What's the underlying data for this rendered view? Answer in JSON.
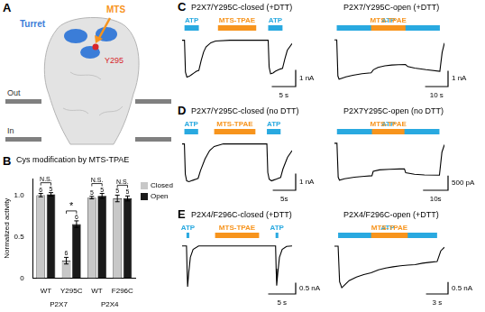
{
  "panel_a": {
    "letter": "A",
    "turret": "Turret",
    "mts": "MTS",
    "residue": "Y295",
    "out": "Out",
    "in": "In"
  },
  "chart_data": [
    {
      "panel": "B",
      "type": "bar",
      "title": "Cys modification by MTS-TPAE",
      "y_label": "Normalized activity",
      "categories": [
        "WT",
        "Y295C",
        "WT",
        "F296C"
      ],
      "groups": [
        {
          "label": "P2X7",
          "size": 2
        },
        {
          "label": "P2X4",
          "size": 2
        }
      ],
      "series": [
        {
          "name": "Closed",
          "color": "#c8c8c8",
          "values": [
            1.0,
            0.21,
            0.97,
            0.96
          ],
          "errors": [
            0.02,
            0.04,
            0.015,
            0.04
          ],
          "n": [
            6,
            6,
            5,
            5
          ]
        },
        {
          "name": "Open",
          "color": "#1a1a1a",
          "values": [
            1.01,
            0.65,
            0.99,
            0.96
          ],
          "errors": [
            0.02,
            0.04,
            0.03,
            0.03
          ],
          "n": [
            5,
            6,
            5,
            5
          ]
        }
      ],
      "significance": [
        "N.S.",
        "*",
        "N.S.",
        "N.S."
      ],
      "ylim": [
        0,
        1.2
      ],
      "yticks": [
        0,
        0.5,
        {
          "value": 1,
          "label": "1.0"
        }
      ],
      "grid": false,
      "legend": "right"
    },
    {
      "panel": "C",
      "type": "line",
      "title": "P2X7/Y295C-closed (+DTT)",
      "color": "#000000",
      "x": [
        0,
        0.5,
        0.7,
        1.0,
        1.5,
        2.0,
        2.5,
        3.0,
        3.5,
        4.0,
        4.5,
        5.0,
        6.0,
        7.0,
        10,
        15,
        18,
        18.2,
        18.5,
        19,
        19.5,
        20,
        20.5,
        21,
        21.5,
        22,
        23
      ],
      "values": [
        0,
        0,
        -1.9,
        -2.2,
        -2.15,
        -2.05,
        -1.95,
        -1.85,
        -1.8,
        -1.2,
        -0.7,
        -0.4,
        -0.15,
        -0.05,
        0,
        0,
        0,
        -1.6,
        -2.0,
        -1.95,
        -1.85,
        -1.78,
        -1.72,
        -1.68,
        -1.1,
        -0.6,
        -0.2
      ],
      "xlim": [
        0,
        23
      ],
      "ylim": [
        -2.6,
        0.3
      ],
      "tick_labels": false,
      "applications": [
        {
          "label": "ATP",
          "start": 0.5,
          "end": 3.5,
          "color": "#29a9e0"
        },
        {
          "label": "MTS-TPAE",
          "start": 7.5,
          "end": 15.5,
          "color": "#f7941d"
        },
        {
          "label": "ATP",
          "start": 18,
          "end": 21,
          "color": "#29a9e0"
        }
      ],
      "scale_bar": {
        "y": 1,
        "y_label": "1 nA",
        "x": 5,
        "x_label": "5 s"
      }
    },
    {
      "type": "line",
      "title": "P2X7/Y295C-open (+DTT)",
      "color": "#000000",
      "x": [
        0,
        1,
        1.5,
        2,
        3,
        5,
        8,
        12,
        16,
        17,
        19,
        22,
        25,
        28,
        31,
        32,
        35,
        40,
        46,
        47,
        48
      ],
      "values": [
        0,
        0,
        -2.3,
        -2.5,
        -2.45,
        -2.35,
        -2.25,
        -2.15,
        -2.1,
        -1.9,
        -1.75,
        -1.65,
        -1.6,
        -1.58,
        -1.57,
        -1.7,
        -1.8,
        -1.9,
        -2.0,
        -0.8,
        -0.2
      ],
      "xlim": [
        0,
        48
      ],
      "ylim": [
        -2.8,
        0.3
      ],
      "tick_labels": false,
      "applications": [
        {
          "label": "ATP",
          "start": 1,
          "end": 46,
          "color": "#29a9e0"
        },
        {
          "label": "MTS-TPAE",
          "start": 16,
          "end": 31,
          "color": "#f7941d"
        }
      ],
      "scale_bar": {
        "y": 1,
        "y_label": "1 nA",
        "x": 10,
        "x_label": "10 s"
      }
    },
    {
      "panel": "D",
      "type": "line",
      "title": "P2X7/Y295C-closed (no DTT)",
      "color": "#000000",
      "x": [
        0,
        0.5,
        0.7,
        1,
        1.5,
        2,
        2.5,
        3,
        3.5,
        4,
        5,
        6,
        7,
        9,
        16,
        18.5,
        18.7,
        19,
        19.5,
        20,
        20.5,
        21,
        21.5,
        22,
        23,
        24
      ],
      "values": [
        0,
        0,
        -1.8,
        -2.2,
        -2.25,
        -2.2,
        -2.15,
        -2.1,
        -2.05,
        -1.6,
        -0.9,
        -0.4,
        -0.15,
        0,
        0,
        0,
        -1.7,
        -2.1,
        -2.2,
        -2.15,
        -2.1,
        -2.05,
        -2.0,
        -1.5,
        -0.8,
        -0.4
      ],
      "xlim": [
        0,
        24
      ],
      "ylim": [
        -2.6,
        0.3
      ],
      "tick_labels": false,
      "applications": [
        {
          "label": "ATP",
          "start": 0.5,
          "end": 3.5,
          "color": "#29a9e0"
        },
        {
          "label": "MTS-TPAE",
          "start": 7,
          "end": 16,
          "color": "#f7941d"
        },
        {
          "label": "ATP",
          "start": 18.5,
          "end": 21.5,
          "color": "#29a9e0"
        }
      ],
      "scale_bar": {
        "y": 1,
        "y_label": "1 nA",
        "x": 5,
        "x_label": "5s"
      }
    },
    {
      "type": "line",
      "title": "P2X7Y295C-open (no DTT)",
      "color": "#000000",
      "x": [
        0,
        1,
        1.5,
        2,
        4,
        8,
        12,
        15,
        15.5,
        18,
        22,
        26,
        28,
        28.5,
        32,
        36,
        42,
        43,
        44
      ],
      "values": [
        0,
        0,
        -1.15,
        -1.25,
        -1.2,
        -1.15,
        -1.12,
        -1.1,
        -0.95,
        -0.9,
        -0.88,
        -0.87,
        -0.87,
        -1.0,
        -1.05,
        -1.07,
        -1.08,
        -0.3,
        -0.05
      ],
      "xlim": [
        0,
        44
      ],
      "ylim": [
        -1.5,
        0.15
      ],
      "tick_labels": false,
      "applications": [
        {
          "label": "ATP",
          "start": 1,
          "end": 42,
          "color": "#29a9e0"
        },
        {
          "label": "MTS-TPAE",
          "start": 15,
          "end": 28,
          "color": "#f7941d"
        }
      ],
      "scale_bar": {
        "y": 0.5,
        "y_label": "500 pA",
        "x": 10,
        "x_label": "10s"
      }
    },
    {
      "panel": "E",
      "type": "line",
      "title": "P2X4/F296C-closed (+DTT)",
      "color": "#000000",
      "x": [
        0,
        0.8,
        0.9,
        1.0,
        1.2,
        1.5,
        2,
        3,
        6,
        17,
        17.1,
        17.2,
        17.4,
        17.7,
        18.2,
        19,
        20
      ],
      "values": [
        0,
        0,
        -1.0,
        -1.8,
        -1.2,
        -0.5,
        -0.15,
        0,
        0,
        0,
        -1.0,
        -1.75,
        -1.2,
        -0.5,
        -0.15,
        -0.02,
        0
      ],
      "xlim": [
        0,
        20
      ],
      "ylim": [
        -2.0,
        0.15
      ],
      "tick_labels": false,
      "applications": [
        {
          "label": "ATP",
          "start": 0.8,
          "end": 1.3,
          "color": "#29a9e0"
        },
        {
          "label": "MTS-TPAE",
          "start": 6,
          "end": 14,
          "color": "#f7941d"
        },
        {
          "label": "ATP",
          "start": 17,
          "end": 17.5,
          "color": "#29a9e0"
        }
      ],
      "scale_bar": {
        "y": 0.5,
        "y_label": "0.5 nA",
        "x": 5,
        "x_label": "5 s"
      }
    },
    {
      "type": "line",
      "title": "P2X4/F296C-open (+DTT)",
      "color": "#000000",
      "x": [
        0,
        0.5,
        0.7,
        1,
        1.5,
        2,
        3,
        4,
        5,
        6,
        7,
        8,
        9,
        10,
        11,
        12,
        13,
        14,
        14.5,
        15
      ],
      "values": [
        0,
        0,
        -1.5,
        -1.75,
        -1.6,
        -1.45,
        -1.3,
        -1.2,
        -1.12,
        -1.0,
        -0.92,
        -0.87,
        -0.83,
        -0.8,
        -0.78,
        -0.72,
        -0.68,
        -0.65,
        -0.2,
        -0.05
      ],
      "xlim": [
        0,
        15
      ],
      "ylim": [
        -1.9,
        0.15
      ],
      "tick_labels": false,
      "applications": [
        {
          "label": "ATP",
          "start": 0.5,
          "end": 14,
          "color": "#29a9e0"
        },
        {
          "label": "MTS-TPAE",
          "start": 5,
          "end": 10,
          "color": "#f7941d"
        }
      ],
      "scale_bar": {
        "y": 0.5,
        "y_label": "0.5 nA",
        "x": 3,
        "x_label": "3 s"
      }
    }
  ]
}
